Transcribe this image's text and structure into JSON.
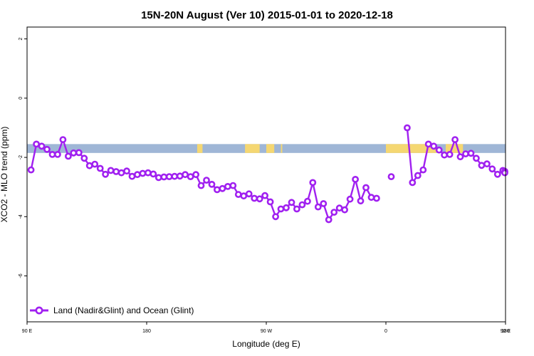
{
  "chart_data": {
    "type": "line",
    "title": "15N-20N August (Ver 10)   2015-01-01 to 2020-12-18",
    "xlabel": "Longitude (deg E)",
    "ylabel": "XCO2 - MLO trend (ppm)",
    "xlim": [
      90,
      450
    ],
    "ylim": [
      -7.55,
      2.4
    ],
    "x_ticks": [
      {
        "value": 90,
        "label": "90 E"
      },
      {
        "value": 180,
        "label": "180"
      },
      {
        "value": 270,
        "label": "90 W"
      },
      {
        "value": 360,
        "label": "0"
      },
      {
        "value": 450,
        "label": "90 E"
      }
    ],
    "x_ticks_lower": [
      {
        "value": 450,
        "label": "180"
      }
    ],
    "y_ticks": [
      {
        "value": 2,
        "label": "2"
      },
      {
        "value": 0,
        "label": "0"
      },
      {
        "value": -2,
        "label": "-2"
      },
      {
        "value": -4,
        "label": "-4"
      },
      {
        "value": -6,
        "label": "-6"
      }
    ],
    "grid": false,
    "land_ocean_strip": {
      "y_range": [
        -1.85,
        -1.55
      ],
      "ocean_color": "#9fb6d6",
      "land_color": "#f5d772",
      "land_segments": [
        [
          218,
          222
        ],
        [
          254,
          265
        ],
        [
          270,
          276
        ],
        [
          281,
          282
        ],
        [
          360,
          398
        ],
        [
          405,
          418
        ]
      ]
    },
    "legend": {
      "position": "bottom-left",
      "entries": [
        "Land (Nadir&Glint) and Ocean (Glint)"
      ]
    },
    "series": [
      {
        "name": "Land (Nadir&Glint) and Ocean (Glint)",
        "color": "#a020f0",
        "segments": [
          [
            [
              93,
              -2.42
            ],
            [
              97,
              -1.55
            ],
            [
              101,
              -1.62
            ],
            [
              105,
              -1.73
            ],
            [
              109,
              -1.9
            ],
            [
              113,
              -1.9
            ],
            [
              117,
              -1.4
            ],
            [
              121,
              -1.96
            ],
            [
              125,
              -1.85
            ],
            [
              129,
              -1.84
            ],
            [
              133,
              -2.03
            ],
            [
              137,
              -2.28
            ],
            [
              141,
              -2.23
            ],
            [
              145,
              -2.37
            ],
            [
              149,
              -2.57
            ],
            [
              153,
              -2.44
            ],
            [
              157,
              -2.48
            ],
            [
              161,
              -2.52
            ],
            [
              165,
              -2.46
            ],
            [
              169,
              -2.64
            ],
            [
              173,
              -2.58
            ],
            [
              177,
              -2.54
            ],
            [
              181,
              -2.52
            ],
            [
              185,
              -2.56
            ],
            [
              189,
              -2.68
            ],
            [
              193,
              -2.66
            ],
            [
              197,
              -2.65
            ],
            [
              201,
              -2.64
            ],
            [
              205,
              -2.63
            ],
            [
              209,
              -2.58
            ],
            [
              213,
              -2.65
            ],
            [
              217,
              -2.58
            ],
            [
              221,
              -2.95
            ],
            [
              225,
              -2.77
            ],
            [
              229,
              -2.91
            ],
            [
              233,
              -3.09
            ],
            [
              237,
              -3.05
            ],
            [
              241,
              -2.98
            ],
            [
              245,
              -2.95
            ],
            [
              249,
              -3.25
            ],
            [
              253,
              -3.3
            ],
            [
              257,
              -3.23
            ],
            [
              261,
              -3.38
            ],
            [
              265,
              -3.4
            ],
            [
              269,
              -3.29
            ],
            [
              273,
              -3.5
            ],
            [
              277,
              -4.0
            ],
            [
              281,
              -3.74
            ],
            [
              285,
              -3.7
            ],
            [
              289,
              -3.52
            ],
            [
              293,
              -3.74
            ],
            [
              297,
              -3.6
            ],
            [
              301,
              -3.48
            ],
            [
              305,
              -2.85
            ],
            [
              309,
              -3.67
            ],
            [
              313,
              -3.56
            ],
            [
              317,
              -4.1
            ],
            [
              321,
              -3.85
            ],
            [
              325,
              -3.71
            ],
            [
              329,
              -3.77
            ],
            [
              333,
              -3.41
            ],
            [
              337,
              -2.74
            ],
            [
              341,
              -3.47
            ],
            [
              345,
              -3.02
            ],
            [
              349,
              -3.35
            ],
            [
              353,
              -3.38
            ]
          ],
          [
            [
              364,
              -2.65
            ]
          ],
          [
            [
              376,
              -1.0
            ],
            [
              380,
              -2.85
            ],
            [
              384,
              -2.61
            ],
            [
              388,
              -2.42
            ],
            [
              392,
              -1.55
            ],
            [
              396,
              -1.62
            ],
            [
              400,
              -1.75
            ],
            [
              404,
              -1.92
            ],
            [
              408,
              -1.9
            ],
            [
              412,
              -1.4
            ],
            [
              416,
              -1.98
            ],
            [
              420,
              -1.88
            ],
            [
              424,
              -1.86
            ],
            [
              428,
              -2.03
            ],
            [
              432,
              -2.27
            ],
            [
              436,
              -2.22
            ],
            [
              440,
              -2.39
            ],
            [
              444,
              -2.57
            ],
            [
              448,
              -2.44
            ],
            [
              452,
              -2.47
            ],
            [
              456,
              -2.52
            ]
          ]
        ]
      }
    ]
  }
}
